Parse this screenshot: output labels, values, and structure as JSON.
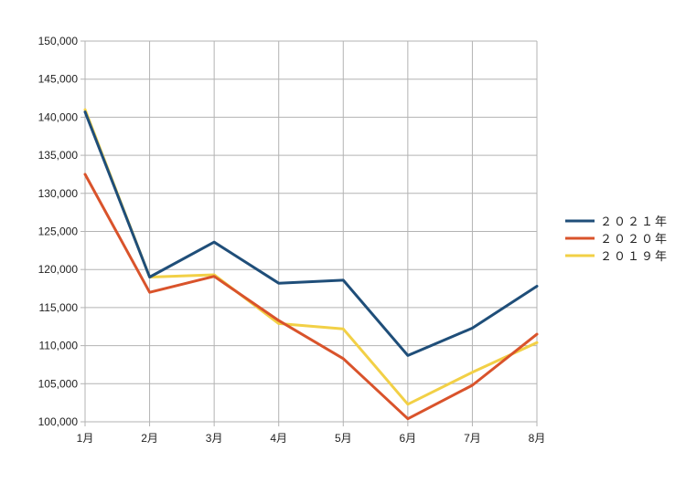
{
  "chart_data": {
    "type": "line",
    "categories": [
      "1月",
      "2月",
      "3月",
      "4月",
      "5月",
      "6月",
      "7月",
      "8月"
    ],
    "series": [
      {
        "name": "２０２１年",
        "color": "#1f4e79",
        "values": [
          140700,
          119000,
          123600,
          118200,
          118600,
          108700,
          112300,
          117800
        ]
      },
      {
        "name": "２０２０年",
        "color": "#d9532b",
        "values": [
          132500,
          117000,
          119100,
          113300,
          108300,
          100400,
          104800,
          111500
        ]
      },
      {
        "name": "２０１９年",
        "color": "#f2d046",
        "values": [
          141000,
          119000,
          119300,
          112900,
          112200,
          102300,
          106500,
          110400
        ]
      }
    ],
    "ylim": [
      100000,
      150000
    ],
    "yticks": [
      100000,
      105000,
      110000,
      115000,
      120000,
      125000,
      130000,
      135000,
      140000,
      145000,
      150000
    ],
    "ytick_labels": [
      "100,000",
      "105,000",
      "110,000",
      "115,000",
      "120,000",
      "125,000",
      "130,000",
      "135,000",
      "140,000",
      "145,000",
      "150,000"
    ],
    "grid": true,
    "legend_position": "right",
    "title": "",
    "xlabel": "",
    "ylabel": ""
  }
}
